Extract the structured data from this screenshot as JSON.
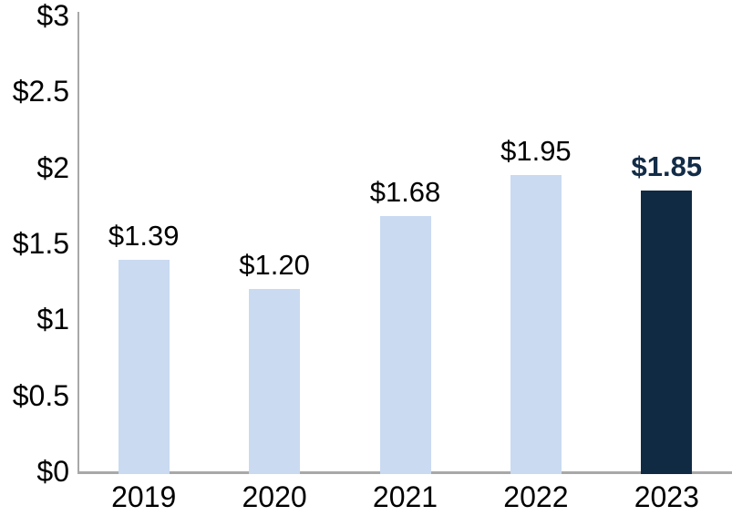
{
  "chart_data": {
    "type": "bar",
    "title": "",
    "xlabel": "",
    "ylabel": "",
    "categories": [
      "2019",
      "2020",
      "2021",
      "2022",
      "2023"
    ],
    "values": [
      1.39,
      1.2,
      1.68,
      1.95,
      1.85
    ],
    "bar_labels": [
      "$1.39",
      "$1.20",
      "$1.68",
      "$1.95",
      "$1.85"
    ],
    "highlight_index": 4,
    "ylim": [
      0,
      3
    ],
    "yticks": [
      0,
      0.5,
      1,
      1.5,
      2,
      2.5,
      3
    ],
    "ytick_labels": [
      "$0",
      "$0.5",
      "$1",
      "$1.5",
      "$2",
      "$2.5",
      "$3"
    ],
    "grid": false,
    "legend": false,
    "colors": {
      "bar": "#c9daf1",
      "highlight_bar": "#112a43",
      "label": "#000000",
      "highlight_label": "#132c47",
      "axis": "#a8a8a8",
      "background": "#ffffff"
    }
  }
}
